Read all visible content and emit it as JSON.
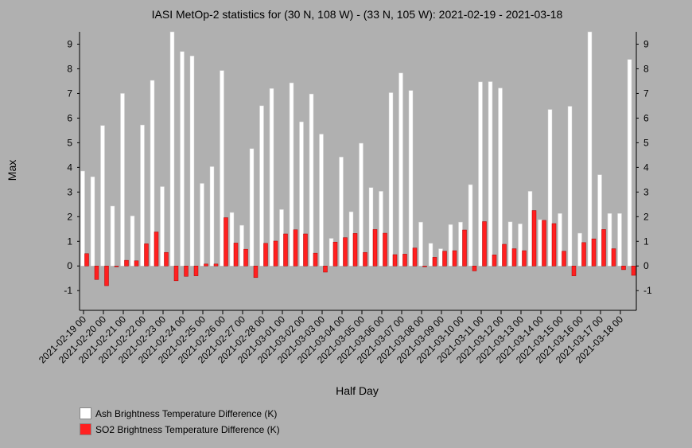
{
  "chart_data": {
    "type": "bar",
    "title": "IASI MetOp-2 statistics for (30 N, 108 W) - (33 N, 105 W): 2021-02-19 - 2021-03-18",
    "xlabel": "Half Day",
    "ylabel": "Max",
    "ylim": [
      -1.8,
      9.5
    ],
    "yticks": [
      -1,
      0,
      1,
      2,
      3,
      4,
      5,
      6,
      7,
      8,
      9
    ],
    "grid": false,
    "legend_position": "bottom-left",
    "tick_labels": [
      "2021-02-19 00",
      "2021-02-20 00",
      "2021-02-21 00",
      "2021-02-22 00",
      "2021-02-23 00",
      "2021-02-24 00",
      "2021-02-25 00",
      "2021-02-26 00",
      "2021-02-27 00",
      "2021-02-28 00",
      "2021-03-01 00",
      "2021-03-02 00",
      "2021-03-03 00",
      "2021-03-04 00",
      "2021-03-05 00",
      "2021-03-06 00",
      "2021-03-07 00",
      "2021-03-08 00",
      "2021-03-09 00",
      "2021-03-10 00",
      "2021-03-11 00",
      "2021-03-12 00",
      "2021-03-13 00",
      "2021-03-14 00",
      "2021-03-15 00",
      "2021-03-16 00",
      "2021-03-17 00",
      "2021-03-18 00"
    ],
    "series": [
      {
        "name": "Ash Brightness Temperature Difference (K)",
        "color": "#ffffff",
        "values": [
          3.85,
          3.62,
          5.7,
          2.43,
          7.0,
          2.03,
          5.72,
          7.53,
          3.22,
          9.5,
          8.7,
          8.52,
          3.35,
          4.03,
          7.93,
          2.17,
          1.65,
          4.76,
          6.5,
          7.2,
          2.29,
          7.43,
          5.85,
          6.98,
          5.35,
          1.12,
          4.42,
          2.2,
          4.98,
          3.18,
          3.03,
          7.03,
          7.83,
          7.12,
          1.78,
          0.92,
          0.7,
          1.68,
          1.78,
          3.3,
          7.47,
          7.48,
          7.22,
          1.79,
          1.71,
          3.03,
          1.88,
          6.35,
          2.13,
          6.48,
          1.33,
          9.5,
          3.7,
          2.13,
          2.13,
          8.38
        ]
      },
      {
        "name": "SO2 Brightness Temperature Difference (K)",
        "color": "#ff2020",
        "values": [
          0.5,
          -0.55,
          -0.8,
          0.0,
          0.23,
          0.21,
          0.9,
          1.38,
          0.55,
          -0.6,
          -0.42,
          -0.4,
          0.08,
          0.08,
          1.96,
          0.93,
          0.68,
          -0.47,
          0.92,
          1.01,
          1.3,
          1.47,
          1.3,
          0.52,
          -0.25,
          0.97,
          1.15,
          1.32,
          0.55,
          1.48,
          1.33,
          0.46,
          0.48,
          0.73,
          -0.02,
          0.35,
          0.6,
          0.62,
          1.46,
          -0.2,
          1.8,
          0.45,
          0.88,
          0.7,
          0.62,
          2.25,
          1.85,
          1.72,
          0.6,
          -0.4,
          0.95,
          1.1,
          1.48,
          0.7,
          -0.15,
          -0.38
        ]
      }
    ]
  }
}
